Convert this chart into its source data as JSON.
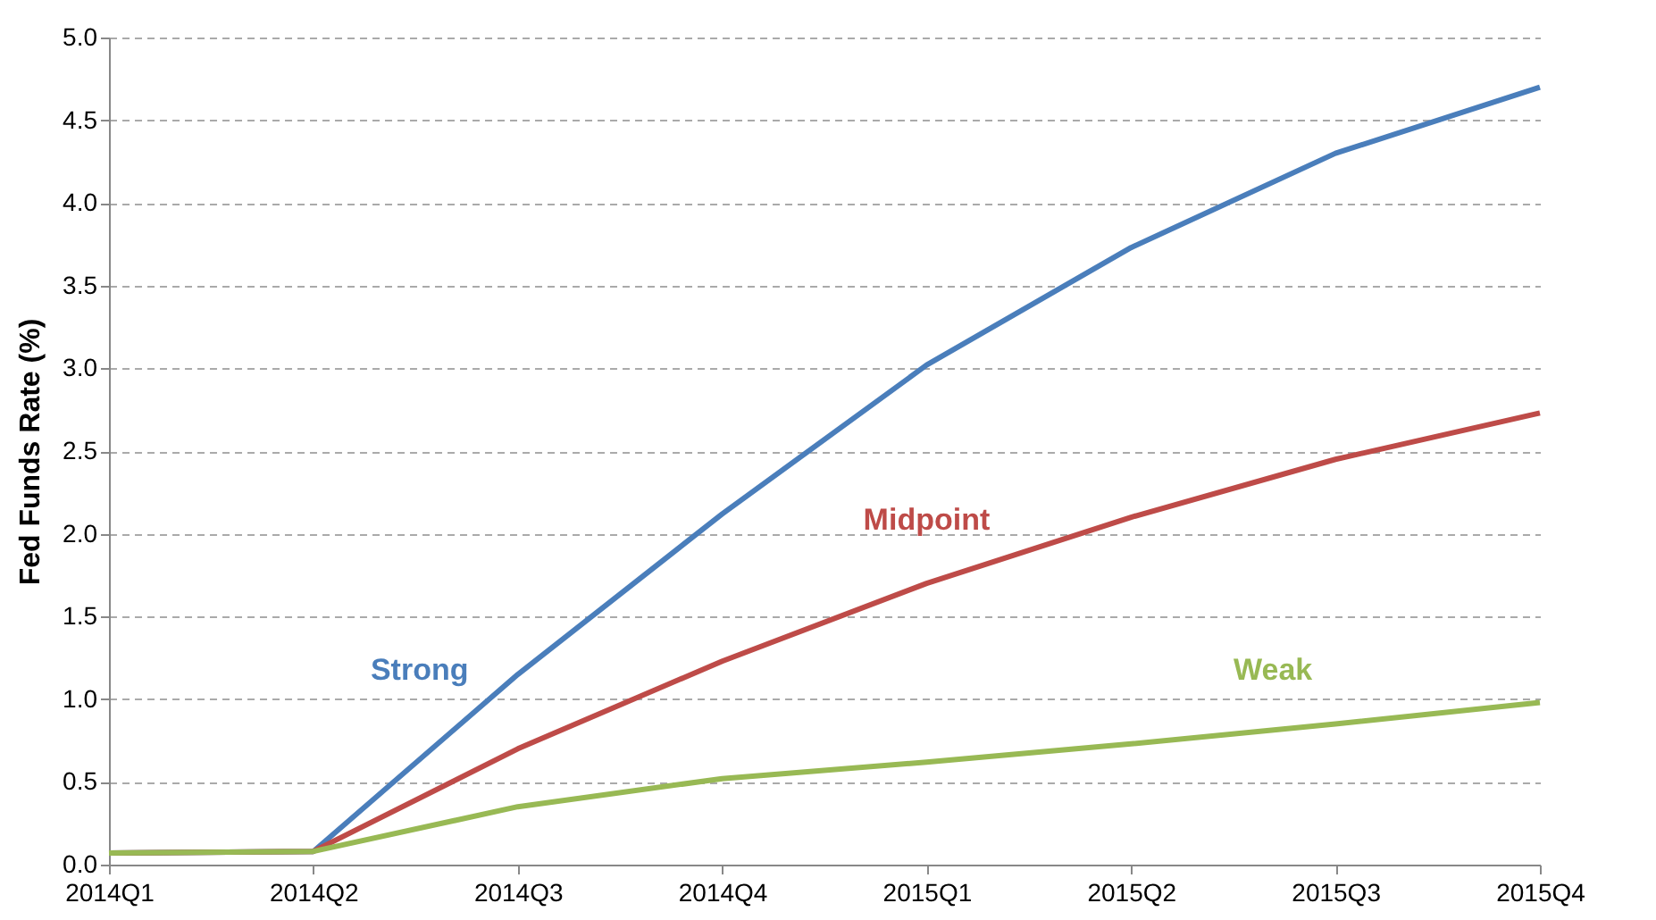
{
  "chart_data": {
    "type": "line",
    "ylabel": "Fed Funds Rate (%)",
    "categories": [
      "2014Q1",
      "2014Q2",
      "2014Q3",
      "2014Q4",
      "2015Q1",
      "2015Q2",
      "2015Q3",
      "2015Q4"
    ],
    "series": [
      {
        "name": "Strong",
        "color": "#4a7ebb",
        "values": [
          0.07,
          0.08,
          1.15,
          2.12,
          3.02,
          3.73,
          4.3,
          4.7
        ]
      },
      {
        "name": "Midpoint",
        "color": "#be4b48",
        "values": [
          0.07,
          0.08,
          0.7,
          1.23,
          1.7,
          2.1,
          2.45,
          2.73
        ]
      },
      {
        "name": "Weak",
        "color": "#98b954",
        "values": [
          0.07,
          0.08,
          0.35,
          0.52,
          0.62,
          0.73,
          0.85,
          0.98
        ]
      }
    ],
    "ylim": [
      0,
      5
    ],
    "yticks": [
      {
        "value": 0,
        "label": "0.0"
      },
      {
        "value": 0.5,
        "label": "0.5"
      },
      {
        "value": 1,
        "label": "1.0"
      },
      {
        "value": 1.5,
        "label": "1.5"
      },
      {
        "value": 2,
        "label": "2.0"
      },
      {
        "value": 2.5,
        "label": "2.5"
      },
      {
        "value": 3,
        "label": "3.0"
      },
      {
        "value": 3.5,
        "label": "3.5"
      },
      {
        "value": 4,
        "label": "4.0"
      },
      {
        "value": 4.5,
        "label": "4.5"
      },
      {
        "value": 5,
        "label": "5.0"
      }
    ],
    "grid": "y",
    "line_style": "solid",
    "legend": false
  }
}
